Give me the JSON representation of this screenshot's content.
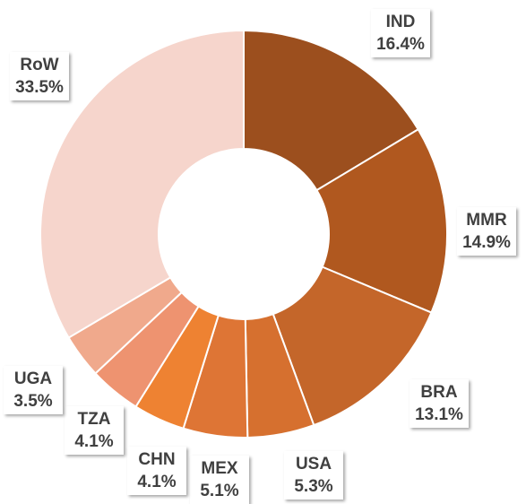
{
  "chart_data": {
    "type": "donut",
    "categories": [
      "IND",
      "MMR",
      "BRA",
      "USA",
      "MEX",
      "CHN",
      "TZA",
      "UGA",
      "RoW"
    ],
    "values": [
      16.4,
      14.9,
      13.1,
      5.3,
      5.1,
      4.1,
      4.1,
      3.5,
      33.5
    ],
    "value_labels": [
      "16.4%",
      "14.9%",
      "13.1%",
      "5.3%",
      "5.1%",
      "4.1%",
      "4.1%",
      "3.5%",
      "33.5%"
    ],
    "colors": [
      "#9c4f1e",
      "#b0581f",
      "#c4662a",
      "#d6702f",
      "#de7535",
      "#ee8232",
      "#ee9370",
      "#f0a98c",
      "#f6d5cc"
    ]
  }
}
